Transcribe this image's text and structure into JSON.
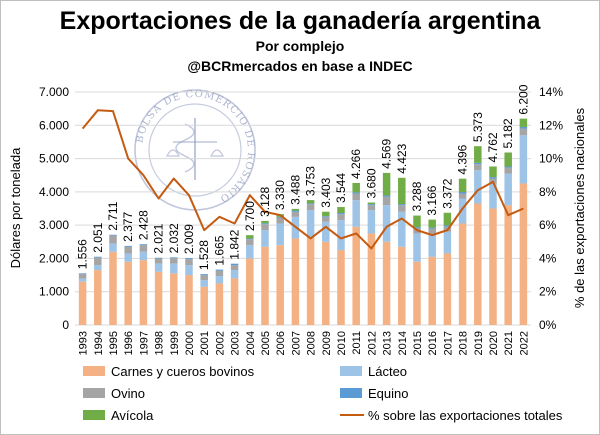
{
  "colors": {
    "carnes": "#f4b183",
    "lacteo": "#9dc3e6",
    "ovino": "#a5a5a5",
    "equino": "#5b9bd5",
    "avicola": "#70ad47",
    "line": "#c55a11",
    "grid": "#d9d9d9",
    "seal": "#8e99c0"
  },
  "chart_data": {
    "type": "bar",
    "title": "Exportaciones de la ganadería argentina",
    "subtitle": "Por complejo",
    "subtitle2": "@BCRmercados en base a INDEC",
    "ylabel": "Dólares por tonelada",
    "y2label": "% de las exportaciones nacionales",
    "ylim": [
      0,
      7000
    ],
    "y2lim": [
      0,
      14
    ],
    "yticks": [
      "0",
      "1.000",
      "2.000",
      "3.000",
      "4.000",
      "5.000",
      "6.000",
      "7.000"
    ],
    "y2ticks": [
      "0%",
      "2%",
      "4%",
      "6%",
      "8%",
      "10%",
      "12%",
      "14%"
    ],
    "grid": true,
    "legend_position": "bottom",
    "watermark_text": "BOLSA DE COMERCIO DE ROSARIO",
    "categories": [
      "1993",
      "1994",
      "1995",
      "1996",
      "1997",
      "1998",
      "1999",
      "2000",
      "2001",
      "2002",
      "2003",
      "2004",
      "2005",
      "2006",
      "2007",
      "2008",
      "2009",
      "2010",
      "2011",
      "2012",
      "2013",
      "2014",
      "2015",
      "2016",
      "2017",
      "2018",
      "2019",
      "2020",
      "2021",
      "2022"
    ],
    "totals_labels": [
      "1.556",
      "2.051",
      "2.711",
      "2.377",
      "2.428",
      "2.021",
      "2.032",
      "2.009",
      "1.528",
      "1.665",
      "1.842",
      "2.700",
      "3.128",
      "3.330",
      "3.488",
      "3.753",
      "3.403",
      "3.544",
      "4.266",
      "3.680",
      "4.569",
      "4.423",
      "3.288",
      "3.166",
      "3.372",
      "4.396",
      "5.373",
      "4.762",
      "5.182",
      "6.200"
    ],
    "series": [
      {
        "name": "Carnes y cueros bovinos",
        "kind": "bar",
        "values": [
          1300,
          1650,
          2200,
          1900,
          1950,
          1600,
          1550,
          1500,
          1150,
          1250,
          1400,
          2000,
          2350,
          2400,
          2600,
          2650,
          2500,
          2250,
          2950,
          2750,
          2500,
          2350,
          1900,
          2050,
          2150,
          3050,
          3650,
          3500,
          3600,
          4250
        ]
      },
      {
        "name": "Lácteo",
        "kind": "bar",
        "values": [
          100,
          150,
          250,
          250,
          250,
          250,
          300,
          300,
          200,
          220,
          250,
          400,
          500,
          650,
          650,
          800,
          600,
          900,
          800,
          700,
          1100,
          1050,
          850,
          700,
          650,
          750,
          1000,
          750,
          950,
          1450
        ]
      },
      {
        "name": "Ovino",
        "kind": "bar",
        "values": [
          140,
          230,
          240,
          200,
          200,
          150,
          160,
          180,
          150,
          160,
          150,
          180,
          180,
          180,
          150,
          180,
          150,
          180,
          200,
          150,
          250,
          200,
          150,
          150,
          150,
          150,
          180,
          150,
          180,
          200
        ]
      },
      {
        "name": "Equino",
        "kind": "bar",
        "values": [
          16,
          21,
          21,
          27,
          28,
          21,
          22,
          29,
          28,
          35,
          42,
          20,
          28,
          20,
          38,
          23,
          23,
          34,
          36,
          30,
          39,
          33,
          38,
          26,
          42,
          46,
          43,
          42,
          32,
          50
        ]
      },
      {
        "name": "Avícola",
        "kind": "bar",
        "values": [
          0,
          0,
          0,
          0,
          0,
          0,
          0,
          0,
          0,
          0,
          0,
          100,
          70,
          80,
          50,
          100,
          130,
          180,
          280,
          50,
          680,
          790,
          350,
          240,
          380,
          400,
          500,
          320,
          420,
          250
        ]
      },
      {
        "name": "% sobre las exportaciones totales",
        "kind": "line",
        "axis": "right",
        "values": [
          11.8,
          12.9,
          12.85,
          10.0,
          9.0,
          7.6,
          8.8,
          7.8,
          5.7,
          6.5,
          6.1,
          7.8,
          6.8,
          6.6,
          5.9,
          5.2,
          5.9,
          5.2,
          5.5,
          4.6,
          5.9,
          6.4,
          5.7,
          5.4,
          5.7,
          7.0,
          8.1,
          8.6,
          6.6,
          7.0
        ]
      }
    ]
  }
}
